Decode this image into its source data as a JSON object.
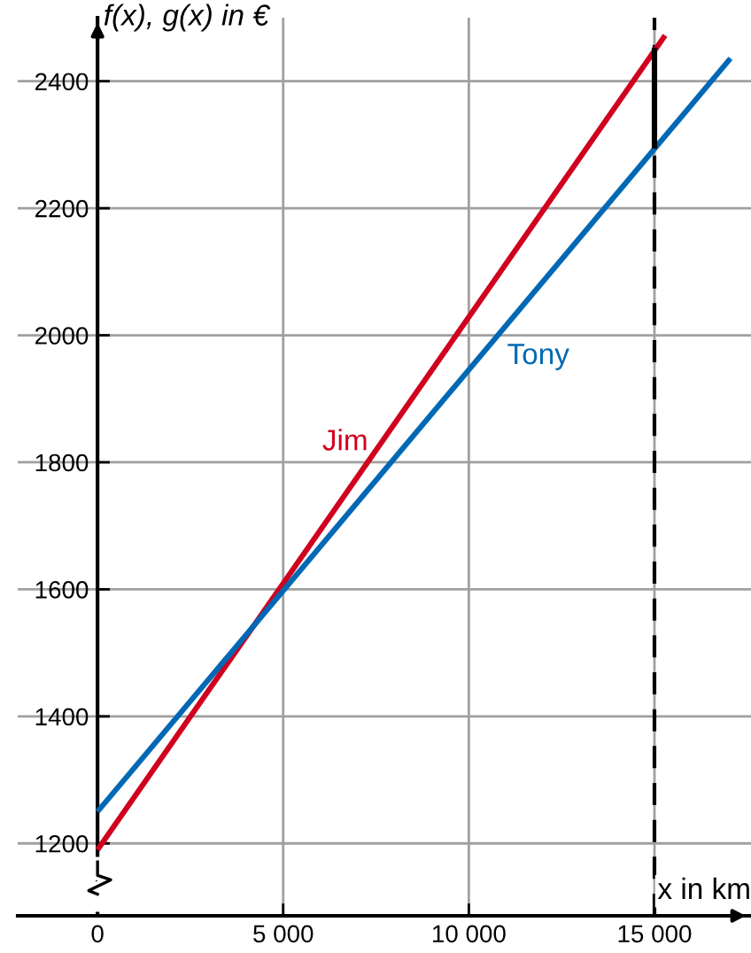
{
  "chart_data": {
    "type": "line",
    "xlabel": "x in km",
    "ylabel": "f(x), g(x) in €",
    "series": [
      {
        "name": "Jim",
        "color": "#d0001f",
        "x": [
          0,
          15286
        ],
        "values": [
          1190,
          2472
        ]
      },
      {
        "name": "Tony",
        "color": "#0068b4",
        "x": [
          0,
          17048
        ],
        "values": [
          1250,
          2436
        ]
      },
      {
        "color": "#000000",
        "x": [
          15000,
          15000
        ],
        "values": [
          2294,
          2453
        ]
      }
    ],
    "xlim": [
      -2150,
      17600
    ],
    "ylim": [
      1086,
      2500
    ],
    "xticks": [
      0,
      {
        "value": 5000,
        "label": "5 000"
      },
      {
        "value": 10000,
        "label": "10 000"
      },
      {
        "value": 15000,
        "label": "15 000"
      }
    ],
    "yticks": [
      1200,
      1400,
      1600,
      1800,
      2000,
      2200,
      2400
    ],
    "ref_lines": [
      {
        "axis": "x",
        "value": 15000,
        "color": "#000000",
        "line_style": "dashed"
      }
    ],
    "grid": true,
    "legend": false,
    "marker": "none",
    "line_style": "solid"
  }
}
